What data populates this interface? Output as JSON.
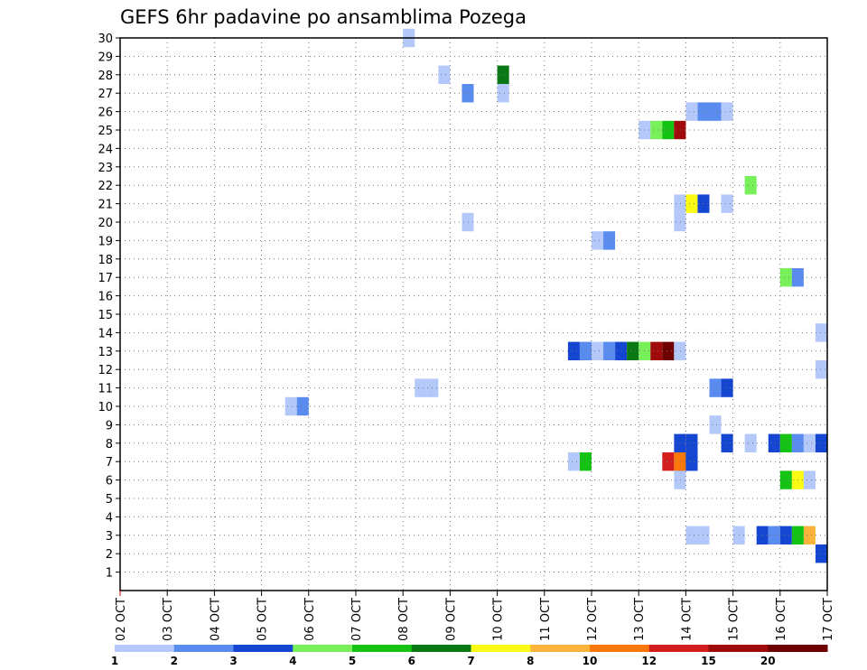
{
  "chart_data": {
    "type": "heatmap",
    "title": "GEFS 6hr padavine po ansamblima Pozega",
    "xlabel": "",
    "ylabel": "",
    "x_tick_labels": [
      "02 OCT",
      "03 OCT",
      "04 OCT",
      "05 OCT",
      "06 OCT",
      "07 OCT",
      "08 OCT",
      "09 OCT",
      "10 OCT",
      "11 OCT",
      "12 OCT",
      "13 OCT",
      "14 OCT",
      "15 OCT",
      "16 OCT",
      "17 OCT"
    ],
    "y_tick_labels": [
      "1",
      "2",
      "3",
      "4",
      "5",
      "6",
      "7",
      "8",
      "9",
      "10",
      "11",
      "12",
      "13",
      "14",
      "15",
      "16",
      "17",
      "18",
      "19",
      "20",
      "21",
      "22",
      "23",
      "24",
      "25",
      "26",
      "27",
      "28",
      "29",
      "30"
    ],
    "x_range_days": [
      0,
      15
    ],
    "y_range_members": [
      0,
      30
    ],
    "grid": true,
    "colorbar": {
      "labels": [
        "1",
        "2",
        "3",
        "4",
        "5",
        "6",
        "7",
        "8",
        "10",
        "12",
        "15",
        "20"
      ],
      "colors": [
        "#b4c8fa",
        "#5a8cf0",
        "#1446d2",
        "#78f05a",
        "#14c314",
        "#0a7814",
        "#fafa14",
        "#fab43c",
        "#fa780a",
        "#d21e1e",
        "#a00a0a",
        "#6e0000"
      ]
    },
    "cells": [
      {
        "d": 6.25,
        "m": 30,
        "c": 0
      },
      {
        "d": 7.0,
        "m": 28,
        "c": 0
      },
      {
        "d": 8.25,
        "m": 28,
        "c": 5
      },
      {
        "d": 7.5,
        "m": 27,
        "c": 1
      },
      {
        "d": 8.25,
        "m": 27,
        "c": 0
      },
      {
        "d": 12.25,
        "m": 26,
        "c": 0
      },
      {
        "d": 12.5,
        "m": 26,
        "c": 1
      },
      {
        "d": 12.75,
        "m": 26,
        "c": 1
      },
      {
        "d": 13.0,
        "m": 26,
        "c": 0
      },
      {
        "d": 11.25,
        "m": 25,
        "c": 0
      },
      {
        "d": 11.5,
        "m": 25,
        "c": 3
      },
      {
        "d": 11.75,
        "m": 25,
        "c": 4
      },
      {
        "d": 12.0,
        "m": 25,
        "c": 10
      },
      {
        "d": 13.5,
        "m": 22,
        "c": 3
      },
      {
        "d": 12.0,
        "m": 21,
        "c": 0
      },
      {
        "d": 12.25,
        "m": 21,
        "c": 6
      },
      {
        "d": 12.5,
        "m": 21,
        "c": 2
      },
      {
        "d": 13.0,
        "m": 21,
        "c": 0
      },
      {
        "d": 7.5,
        "m": 20,
        "c": 0
      },
      {
        "d": 12.0,
        "m": 20,
        "c": 0
      },
      {
        "d": 10.25,
        "m": 19,
        "c": 0
      },
      {
        "d": 10.5,
        "m": 19,
        "c": 1
      },
      {
        "d": 14.25,
        "m": 17,
        "c": 3
      },
      {
        "d": 14.5,
        "m": 17,
        "c": 1
      },
      {
        "d": 15.0,
        "m": 14,
        "c": 0
      },
      {
        "d": 9.75,
        "m": 13,
        "c": 2
      },
      {
        "d": 10.0,
        "m": 13,
        "c": 1
      },
      {
        "d": 10.25,
        "m": 13,
        "c": 0
      },
      {
        "d": 10.5,
        "m": 13,
        "c": 1
      },
      {
        "d": 10.75,
        "m": 13,
        "c": 2
      },
      {
        "d": 11.0,
        "m": 13,
        "c": 5
      },
      {
        "d": 11.25,
        "m": 13,
        "c": 3
      },
      {
        "d": 11.5,
        "m": 13,
        "c": 10
      },
      {
        "d": 11.75,
        "m": 13,
        "c": 11
      },
      {
        "d": 12.0,
        "m": 13,
        "c": 0
      },
      {
        "d": 15.0,
        "m": 12,
        "c": 0
      },
      {
        "d": 6.5,
        "m": 11,
        "c": 0
      },
      {
        "d": 6.75,
        "m": 11,
        "c": 0
      },
      {
        "d": 12.75,
        "m": 11,
        "c": 1
      },
      {
        "d": 13.0,
        "m": 11,
        "c": 2
      },
      {
        "d": 3.75,
        "m": 10,
        "c": 0
      },
      {
        "d": 4.0,
        "m": 10,
        "c": 1
      },
      {
        "d": 12.75,
        "m": 9,
        "c": 0
      },
      {
        "d": 12.0,
        "m": 8,
        "c": 2
      },
      {
        "d": 12.25,
        "m": 8,
        "c": 2
      },
      {
        "d": 13.0,
        "m": 8,
        "c": 2
      },
      {
        "d": 13.5,
        "m": 8,
        "c": 0
      },
      {
        "d": 14.0,
        "m": 8,
        "c": 2
      },
      {
        "d": 14.25,
        "m": 8,
        "c": 4
      },
      {
        "d": 14.5,
        "m": 8,
        "c": 1
      },
      {
        "d": 14.75,
        "m": 8,
        "c": 0
      },
      {
        "d": 15.0,
        "m": 8,
        "c": 2
      },
      {
        "d": 12.0,
        "m": 7,
        "c": 2
      },
      {
        "d": 12.25,
        "m": 7,
        "c": 2
      },
      {
        "d": 9.75,
        "m": 7,
        "c": 0
      },
      {
        "d": 10.0,
        "m": 7,
        "c": 4
      },
      {
        "d": 11.75,
        "m": 7,
        "c": 9
      },
      {
        "d": 12.0,
        "m": 7,
        "c": 8
      },
      {
        "d": 12.25,
        "m": 7,
        "c": 2
      },
      {
        "d": 12.0,
        "m": 6,
        "c": 0
      },
      {
        "d": 14.25,
        "m": 6,
        "c": 4
      },
      {
        "d": 14.5,
        "m": 6,
        "c": 6
      },
      {
        "d": 14.75,
        "m": 6,
        "c": 0
      },
      {
        "d": 12.25,
        "m": 3,
        "c": 0
      },
      {
        "d": 12.5,
        "m": 3,
        "c": 0
      },
      {
        "d": 13.25,
        "m": 3,
        "c": 0
      },
      {
        "d": 13.75,
        "m": 3,
        "c": 2
      },
      {
        "d": 14.0,
        "m": 3,
        "c": 1
      },
      {
        "d": 14.25,
        "m": 3,
        "c": 2
      },
      {
        "d": 14.5,
        "m": 3,
        "c": 4
      },
      {
        "d": 14.75,
        "m": 3,
        "c": 7
      },
      {
        "d": 15.0,
        "m": 2,
        "c": 2
      }
    ]
  }
}
